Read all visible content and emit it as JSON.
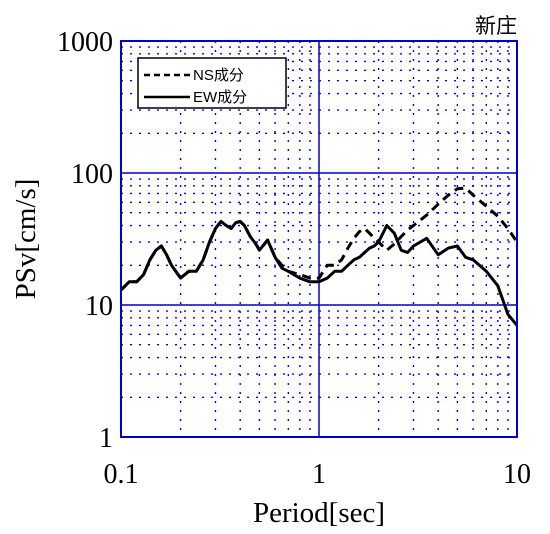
{
  "chart_data": {
    "type": "line",
    "title": "新庄",
    "xlabel": "Period[sec]",
    "ylabel": "PSv[cm/s]",
    "x_scale": "log",
    "y_scale": "log",
    "xlim": [
      0.1,
      10
    ],
    "ylim": [
      1,
      1000
    ],
    "x_ticks": [
      "0.1",
      "1",
      "10"
    ],
    "y_ticks": [
      "1",
      "10",
      "100",
      "1000"
    ],
    "grid": true,
    "legend_position": "top-left",
    "colors": {
      "axes": "#0000cc",
      "grid_major": "#0000cc",
      "grid_minor": "#0000ff",
      "lines": "#000000"
    },
    "series": [
      {
        "name": "NS成分",
        "style": "dashed",
        "x": [
          0.1,
          0.11,
          0.12,
          0.13,
          0.14,
          0.15,
          0.16,
          0.17,
          0.18,
          0.2,
          0.22,
          0.24,
          0.26,
          0.28,
          0.3,
          0.32,
          0.34,
          0.36,
          0.38,
          0.4,
          0.42,
          0.45,
          0.48,
          0.5,
          0.55,
          0.6,
          0.65,
          0.7,
          0.8,
          0.9,
          1.0,
          1.1,
          1.2,
          1.3,
          1.4,
          1.5,
          1.6,
          1.7,
          1.8,
          1.9,
          2.0,
          2.2,
          2.4,
          2.6,
          2.8,
          3.0,
          3.5,
          4.0,
          4.5,
          5.0,
          5.5,
          6.0,
          7.0,
          8.0,
          9.0,
          10.0
        ],
        "y": [
          13,
          15,
          15,
          17,
          22,
          26,
          28,
          24,
          20,
          16,
          18,
          18,
          22,
          30,
          38,
          43,
          40,
          38,
          42,
          43,
          40,
          33,
          29,
          26,
          31,
          23,
          20,
          18,
          17,
          16,
          16,
          20,
          20,
          22,
          27,
          32,
          36,
          38,
          35,
          32,
          30,
          26,
          29,
          33,
          37,
          40,
          48,
          58,
          68,
          76,
          77,
          68,
          56,
          47,
          38,
          30
        ]
      },
      {
        "name": "EW成分",
        "style": "solid",
        "x": [
          0.1,
          0.11,
          0.12,
          0.13,
          0.14,
          0.15,
          0.16,
          0.17,
          0.18,
          0.2,
          0.22,
          0.24,
          0.26,
          0.28,
          0.3,
          0.32,
          0.34,
          0.36,
          0.38,
          0.4,
          0.42,
          0.45,
          0.48,
          0.5,
          0.55,
          0.6,
          0.65,
          0.7,
          0.8,
          0.9,
          1.0,
          1.1,
          1.2,
          1.3,
          1.4,
          1.5,
          1.6,
          1.7,
          1.8,
          1.9,
          2.0,
          2.2,
          2.4,
          2.6,
          2.8,
          3.0,
          3.5,
          4.0,
          4.5,
          5.0,
          5.5,
          6.0,
          7.0,
          8.0,
          9.0,
          10.0
        ],
        "y": [
          13,
          15,
          15,
          17,
          22,
          26,
          28,
          24,
          20,
          16,
          18,
          18,
          22,
          30,
          38,
          43,
          40,
          38,
          42,
          43,
          40,
          33,
          29,
          26,
          31,
          23,
          19,
          18,
          16,
          15,
          15,
          16,
          18,
          18,
          20,
          22,
          23,
          25,
          27,
          28,
          30,
          40,
          35,
          26,
          25,
          28,
          32,
          24,
          27,
          28,
          23,
          22,
          18,
          14,
          8.5,
          7
        ]
      }
    ]
  }
}
